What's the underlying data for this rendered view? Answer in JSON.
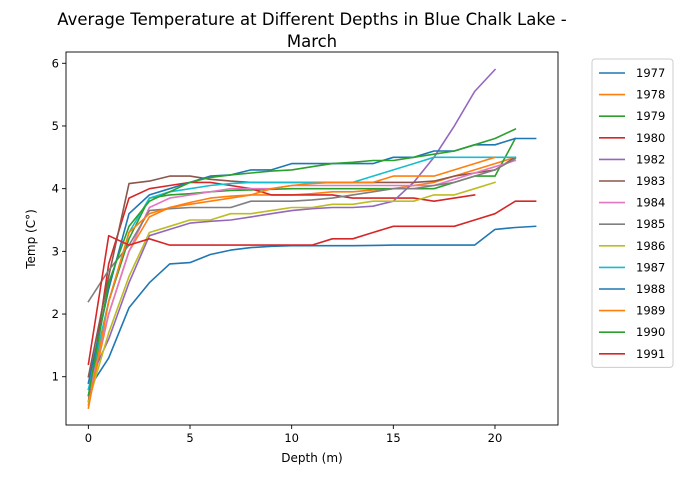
{
  "chart_data": {
    "type": "line",
    "title_lines": [
      "Average Temperature at Different Depths in Blue Chalk Lake -",
      "March"
    ],
    "xlabel": "Depth (m)",
    "ylabel": "Temp (C°)",
    "xlim": [
      -1.1,
      23.1
    ],
    "ylim": [
      0.23,
      6.18
    ],
    "xticks": [
      0,
      5,
      10,
      15,
      20
    ],
    "yticks": [
      1,
      2,
      3,
      4,
      5,
      6
    ],
    "grid": false,
    "legend_position": "outside-right",
    "series": [
      {
        "name": "1977",
        "color": "#1f77b4",
        "points": [
          [
            0,
            0.8
          ],
          [
            1,
            1.3
          ],
          [
            2,
            2.1
          ],
          [
            3,
            2.5
          ],
          [
            4,
            2.8
          ],
          [
            5,
            2.82
          ],
          [
            6,
            2.95
          ],
          [
            7,
            3.02
          ],
          [
            8,
            3.06
          ],
          [
            9,
            3.08
          ],
          [
            10,
            3.09
          ],
          [
            11,
            3.09
          ],
          [
            12,
            3.09
          ],
          [
            13,
            3.09
          ],
          [
            14,
            3.095
          ],
          [
            15,
            3.1
          ],
          [
            16,
            3.1
          ],
          [
            17,
            3.1
          ],
          [
            18,
            3.1
          ],
          [
            19,
            3.1
          ],
          [
            20,
            3.35
          ],
          [
            21,
            3.38
          ],
          [
            22,
            3.4
          ]
        ]
      },
      {
        "name": "1978",
        "color": "#ff7f0e",
        "points": [
          [
            0,
            0.55
          ],
          [
            1,
            2.0
          ],
          [
            2,
            3.0
          ],
          [
            3,
            3.55
          ],
          [
            4,
            3.7
          ],
          [
            5,
            3.78
          ],
          [
            6,
            3.85
          ],
          [
            7,
            3.88
          ],
          [
            8,
            3.9
          ],
          [
            9,
            3.9
          ],
          [
            10,
            3.9
          ],
          [
            11,
            3.92
          ],
          [
            12,
            3.95
          ],
          [
            13,
            3.95
          ],
          [
            14,
            3.98
          ],
          [
            15,
            4.0
          ],
          [
            16,
            4.05
          ],
          [
            17,
            4.1
          ],
          [
            18,
            4.2
          ],
          [
            19,
            4.3
          ],
          [
            20,
            4.4
          ],
          [
            21,
            4.5
          ]
        ]
      },
      {
        "name": "1979",
        "color": "#2ca02c",
        "points": [
          [
            0,
            0.7
          ],
          [
            1,
            2.2
          ],
          [
            2,
            3.2
          ],
          [
            3,
            3.85
          ],
          [
            4,
            3.9
          ],
          [
            5,
            3.92
          ],
          [
            6,
            3.95
          ],
          [
            7,
            3.97
          ],
          [
            8,
            3.98
          ],
          [
            9,
            3.99
          ],
          [
            10,
            4.0
          ],
          [
            11,
            4.0
          ],
          [
            12,
            4.0
          ],
          [
            13,
            4.0
          ],
          [
            14,
            4.0
          ],
          [
            15,
            4.0
          ],
          [
            16,
            4.0
          ],
          [
            17,
            4.0
          ],
          [
            18,
            4.1
          ],
          [
            19,
            4.2
          ],
          [
            20,
            4.2
          ],
          [
            21,
            4.8
          ]
        ]
      },
      {
        "name": "1980",
        "color": "#d62728",
        "points": [
          [
            0,
            0.6
          ],
          [
            1,
            2.8
          ],
          [
            2,
            3.85
          ],
          [
            3,
            4.0
          ],
          [
            4,
            4.05
          ],
          [
            5,
            4.1
          ],
          [
            6,
            4.1
          ],
          [
            7,
            4.05
          ],
          [
            8,
            4.0
          ],
          [
            9,
            3.9
          ],
          [
            10,
            3.9
          ],
          [
            11,
            3.9
          ],
          [
            12,
            3.9
          ],
          [
            13,
            3.85
          ],
          [
            14,
            3.85
          ],
          [
            15,
            3.85
          ],
          [
            16,
            3.85
          ],
          [
            17,
            3.8
          ],
          [
            18,
            3.85
          ],
          [
            19,
            3.9
          ]
        ]
      },
      {
        "name": "1982",
        "color": "#9467bd",
        "points": [
          [
            0,
            0.9
          ],
          [
            1,
            1.6
          ],
          [
            2,
            2.5
          ],
          [
            3,
            3.25
          ],
          [
            4,
            3.35
          ],
          [
            5,
            3.45
          ],
          [
            6,
            3.48
          ],
          [
            7,
            3.5
          ],
          [
            8,
            3.55
          ],
          [
            9,
            3.6
          ],
          [
            10,
            3.65
          ],
          [
            11,
            3.68
          ],
          [
            12,
            3.7
          ],
          [
            13,
            3.7
          ],
          [
            14,
            3.72
          ],
          [
            15,
            3.8
          ],
          [
            16,
            4.1
          ],
          [
            17,
            4.5
          ],
          [
            18,
            5.0
          ],
          [
            19,
            5.55
          ],
          [
            20,
            5.9
          ]
        ]
      },
      {
        "name": "1983",
        "color": "#8c564b",
        "points": [
          [
            0,
            1.0
          ],
          [
            1,
            2.6
          ],
          [
            2,
            4.08
          ],
          [
            3,
            4.12
          ],
          [
            4,
            4.2
          ],
          [
            5,
            4.2
          ],
          [
            6,
            4.15
          ],
          [
            7,
            4.12
          ],
          [
            8,
            4.1
          ],
          [
            9,
            4.1
          ],
          [
            10,
            4.1
          ],
          [
            11,
            4.1
          ],
          [
            12,
            4.1
          ],
          [
            13,
            4.1
          ],
          [
            14,
            4.1
          ],
          [
            15,
            4.1
          ],
          [
            16,
            4.1
          ],
          [
            17,
            4.12
          ],
          [
            18,
            4.2
          ],
          [
            19,
            4.25
          ],
          [
            20,
            4.3
          ],
          [
            21,
            4.5
          ]
        ]
      },
      {
        "name": "1984",
        "color": "#e377c2",
        "points": [
          [
            0,
            0.7
          ],
          [
            1,
            2.0
          ],
          [
            2,
            3.0
          ],
          [
            3,
            3.7
          ],
          [
            4,
            3.85
          ],
          [
            5,
            3.9
          ],
          [
            6,
            3.95
          ],
          [
            7,
            4.0
          ],
          [
            8,
            4.0
          ],
          [
            9,
            4.0
          ],
          [
            10,
            4.05
          ],
          [
            11,
            4.05
          ],
          [
            12,
            4.05
          ],
          [
            13,
            4.05
          ],
          [
            14,
            4.05
          ],
          [
            15,
            4.05
          ],
          [
            16,
            4.05
          ],
          [
            17,
            4.05
          ],
          [
            18,
            4.15
          ],
          [
            19,
            4.25
          ],
          [
            20,
            4.35
          ],
          [
            21,
            4.45
          ]
        ]
      },
      {
        "name": "1985",
        "color": "#7f7f7f",
        "points": [
          [
            0,
            2.2
          ],
          [
            1,
            2.7
          ],
          [
            2,
            3.1
          ],
          [
            3,
            3.65
          ],
          [
            4,
            3.68
          ],
          [
            5,
            3.7
          ],
          [
            6,
            3.7
          ],
          [
            7,
            3.7
          ],
          [
            8,
            3.8
          ],
          [
            9,
            3.8
          ],
          [
            10,
            3.8
          ],
          [
            11,
            3.82
          ],
          [
            12,
            3.85
          ],
          [
            13,
            3.9
          ],
          [
            14,
            3.95
          ],
          [
            15,
            4.0
          ],
          [
            16,
            4.0
          ],
          [
            17,
            4.05
          ],
          [
            18,
            4.1
          ],
          [
            19,
            4.2
          ],
          [
            20,
            4.3
          ],
          [
            21,
            4.48
          ]
        ]
      },
      {
        "name": "1986",
        "color": "#bcbd22",
        "points": [
          [
            0,
            0.6
          ],
          [
            1,
            1.7
          ],
          [
            2,
            2.6
          ],
          [
            3,
            3.3
          ],
          [
            4,
            3.4
          ],
          [
            5,
            3.5
          ],
          [
            6,
            3.5
          ],
          [
            7,
            3.6
          ],
          [
            8,
            3.6
          ],
          [
            9,
            3.65
          ],
          [
            10,
            3.7
          ],
          [
            11,
            3.7
          ],
          [
            12,
            3.75
          ],
          [
            13,
            3.75
          ],
          [
            14,
            3.8
          ],
          [
            15,
            3.8
          ],
          [
            16,
            3.8
          ],
          [
            17,
            3.9
          ],
          [
            18,
            3.9
          ],
          [
            19,
            4.0
          ],
          [
            20,
            4.1
          ]
        ]
      },
      {
        "name": "1987",
        "color": "#17becf",
        "points": [
          [
            0,
            0.8
          ],
          [
            1,
            2.2
          ],
          [
            2,
            3.3
          ],
          [
            3,
            3.85
          ],
          [
            4,
            3.95
          ],
          [
            5,
            4.0
          ],
          [
            6,
            4.05
          ],
          [
            7,
            4.08
          ],
          [
            8,
            4.1
          ],
          [
            9,
            4.1
          ],
          [
            10,
            4.1
          ],
          [
            11,
            4.1
          ],
          [
            12,
            4.1
          ],
          [
            13,
            4.1
          ],
          [
            14,
            4.2
          ],
          [
            15,
            4.3
          ],
          [
            16,
            4.4
          ],
          [
            17,
            4.5
          ],
          [
            18,
            4.5
          ],
          [
            19,
            4.5
          ],
          [
            20,
            4.5
          ],
          [
            21,
            4.5
          ]
        ]
      },
      {
        "name": "1988",
        "color": "#1f77b4",
        "points": [
          [
            0,
            0.9
          ],
          [
            1,
            2.4
          ],
          [
            2,
            3.6
          ],
          [
            3,
            3.9
          ],
          [
            4,
            4.0
          ],
          [
            5,
            4.1
          ],
          [
            6,
            4.2
          ],
          [
            7,
            4.22
          ],
          [
            8,
            4.3
          ],
          [
            9,
            4.3
          ],
          [
            10,
            4.4
          ],
          [
            11,
            4.4
          ],
          [
            12,
            4.4
          ],
          [
            13,
            4.4
          ],
          [
            14,
            4.4
          ],
          [
            15,
            4.5
          ],
          [
            16,
            4.5
          ],
          [
            17,
            4.6
          ],
          [
            18,
            4.6
          ],
          [
            19,
            4.7
          ],
          [
            20,
            4.7
          ],
          [
            21,
            4.8
          ],
          [
            22,
            4.8
          ]
        ]
      },
      {
        "name": "1989",
        "color": "#ff7f0e",
        "points": [
          [
            0,
            0.5
          ],
          [
            1,
            2.2
          ],
          [
            2,
            3.3
          ],
          [
            3,
            3.6
          ],
          [
            4,
            3.7
          ],
          [
            5,
            3.75
          ],
          [
            6,
            3.8
          ],
          [
            7,
            3.85
          ],
          [
            8,
            3.9
          ],
          [
            9,
            4.0
          ],
          [
            10,
            4.05
          ],
          [
            11,
            4.08
          ],
          [
            12,
            4.1
          ],
          [
            13,
            4.1
          ],
          [
            14,
            4.1
          ],
          [
            15,
            4.2
          ],
          [
            16,
            4.2
          ],
          [
            17,
            4.2
          ],
          [
            18,
            4.3
          ],
          [
            19,
            4.4
          ],
          [
            20,
            4.5
          ]
        ]
      },
      {
        "name": "1990",
        "color": "#2ca02c",
        "points": [
          [
            0,
            0.7
          ],
          [
            1,
            2.5
          ],
          [
            2,
            3.4
          ],
          [
            3,
            3.8
          ],
          [
            4,
            3.95
          ],
          [
            5,
            4.1
          ],
          [
            6,
            4.18
          ],
          [
            7,
            4.22
          ],
          [
            8,
            4.25
          ],
          [
            9,
            4.28
          ],
          [
            10,
            4.3
          ],
          [
            11,
            4.35
          ],
          [
            12,
            4.4
          ],
          [
            13,
            4.42
          ],
          [
            14,
            4.45
          ],
          [
            15,
            4.45
          ],
          [
            16,
            4.5
          ],
          [
            17,
            4.55
          ],
          [
            18,
            4.6
          ],
          [
            19,
            4.7
          ],
          [
            20,
            4.8
          ],
          [
            21,
            4.95
          ]
        ]
      },
      {
        "name": "1991",
        "color": "#d62728",
        "points": [
          [
            0,
            1.2
          ],
          [
            1,
            3.25
          ],
          [
            2,
            3.1
          ],
          [
            3,
            3.2
          ],
          [
            4,
            3.1
          ],
          [
            5,
            3.1
          ],
          [
            6,
            3.1
          ],
          [
            7,
            3.1
          ],
          [
            8,
            3.1
          ],
          [
            9,
            3.1
          ],
          [
            10,
            3.1
          ],
          [
            11,
            3.1
          ],
          [
            12,
            3.2
          ],
          [
            13,
            3.2
          ],
          [
            14,
            3.3
          ],
          [
            15,
            3.4
          ],
          [
            16,
            3.4
          ],
          [
            17,
            3.4
          ],
          [
            18,
            3.4
          ],
          [
            19,
            3.5
          ],
          [
            20,
            3.6
          ],
          [
            21,
            3.8
          ],
          [
            22,
            3.8
          ]
        ]
      }
    ]
  }
}
